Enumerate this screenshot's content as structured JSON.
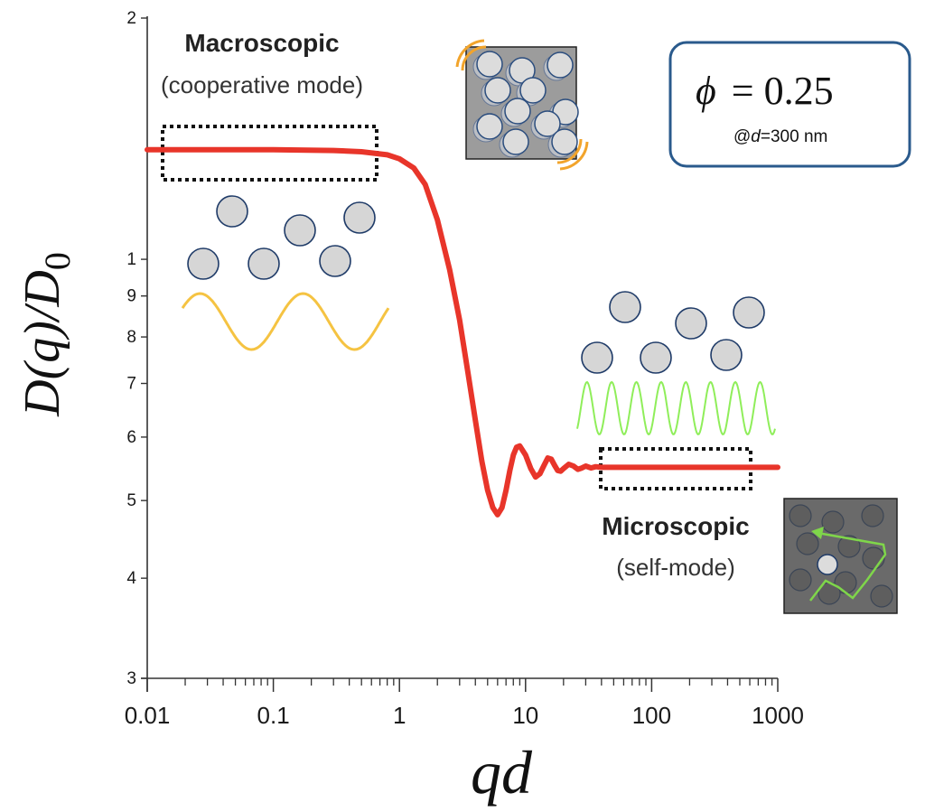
{
  "chart_data": {
    "type": "line",
    "title": "",
    "xlabel": "qd",
    "ylabel": "D(q)/D0",
    "ylabel_parts": {
      "main": "D(q)/D",
      "subscript": "0"
    },
    "xscale": "log",
    "yscale": "log",
    "xlim": [
      0.01,
      1000
    ],
    "ylim": [
      0.3,
      2
    ],
    "grid": false,
    "x_ticks": [
      {
        "value": 0.01,
        "label": "0.01"
      },
      {
        "value": 0.1,
        "label": "0.1"
      },
      {
        "value": 1,
        "label": "1"
      },
      {
        "value": 10,
        "label": "10"
      },
      {
        "value": 100,
        "label": "100"
      },
      {
        "value": 1000,
        "label": "1000"
      }
    ],
    "y_ticks": [
      {
        "value": 2,
        "label": "2"
      },
      {
        "value": 1,
        "label": "1"
      },
      {
        "value": 0.9,
        "label": "9"
      },
      {
        "value": 0.8,
        "label": "8"
      },
      {
        "value": 0.7,
        "label": "7"
      },
      {
        "value": 0.6,
        "label": "6"
      },
      {
        "value": 0.5,
        "label": "5"
      },
      {
        "value": 0.4,
        "label": "4"
      },
      {
        "value": 0.3,
        "label": "3"
      }
    ],
    "series": [
      {
        "name": "D(q)/D0",
        "color": "#e8352a",
        "x": [
          0.01,
          0.05,
          0.1,
          0.3,
          0.5,
          0.8,
          1.0,
          1.3,
          1.6,
          2.0,
          2.5,
          3.0,
          3.5,
          4.0,
          4.5,
          5.0,
          5.5,
          6.0,
          6.5,
          7.0,
          7.5,
          8.0,
          8.5,
          9.0,
          10,
          11,
          12,
          13,
          14,
          15,
          16,
          17,
          18,
          19,
          20,
          22,
          24,
          26,
          28,
          30,
          33,
          36,
          40,
          50,
          70,
          100,
          200,
          500,
          1000
        ],
        "y": [
          1.37,
          1.37,
          1.37,
          1.367,
          1.362,
          1.35,
          1.335,
          1.3,
          1.24,
          1.12,
          0.97,
          0.84,
          0.72,
          0.63,
          0.56,
          0.515,
          0.49,
          0.48,
          0.49,
          0.515,
          0.545,
          0.57,
          0.583,
          0.585,
          0.57,
          0.548,
          0.535,
          0.54,
          0.553,
          0.565,
          0.563,
          0.553,
          0.545,
          0.544,
          0.548,
          0.555,
          0.552,
          0.547,
          0.549,
          0.552,
          0.549,
          0.551,
          0.55,
          0.55,
          0.55,
          0.55,
          0.55,
          0.55,
          0.55
        ]
      }
    ],
    "annotations": [
      {
        "id": "macro",
        "title": "Macroscopic",
        "subtitle": "(cooperative mode)",
        "region_qd": [
          0.012,
          0.7
        ]
      },
      {
        "id": "micro",
        "title": "Microscopic",
        "subtitle": "(self-mode)",
        "region_qd": [
          40,
          600
        ]
      }
    ],
    "legend": {
      "phi_symbol": "ϕ",
      "phi_equals": "= 0.25",
      "condition_prefix": "@",
      "condition_var": "d",
      "condition_value": "=300 nm",
      "placement": "top-right"
    }
  },
  "colors": {
    "curve": "#e8352a",
    "axis": "#333333",
    "particle_fill": "#d6d6d6",
    "particle_stroke": "#1f3b68",
    "macro_wave": "#f5c342",
    "micro_wave": "#8fee5a",
    "legend_border": "#2a5a8c",
    "orange_arc": "#f2a42b",
    "box_light": "#9c9c9c",
    "box_dark": "#6a6a6a"
  }
}
